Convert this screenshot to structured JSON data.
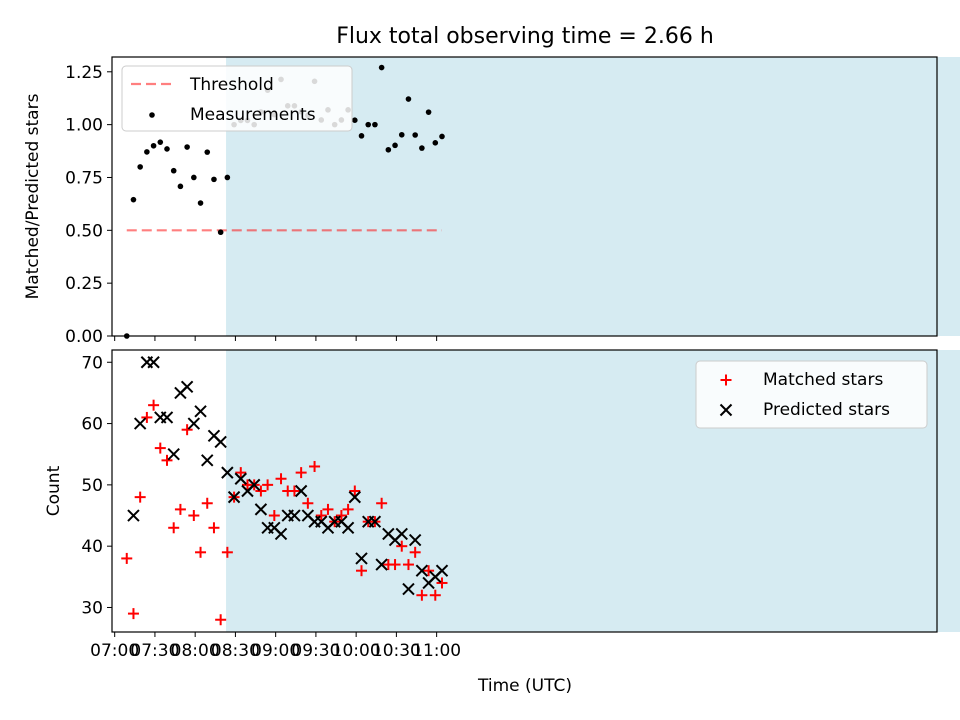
{
  "colors": {
    "span": "#add8e6",
    "threshold": "#ff0000",
    "matched": "#ff0000",
    "predicted": "#000000",
    "measure": "#000000"
  },
  "chart_data": {
    "title": "Flux total observing time = 2.66 h",
    "xlabel": "Time (UTC)",
    "x_ticks": [
      "07:00",
      "07:30",
      "08:00",
      "08:30",
      "09:00",
      "09:30",
      "10:00",
      "10:30",
      "11:00"
    ],
    "x_range_minutes": [
      418,
      1033
    ],
    "span_minutes": [
      503,
      1063
    ],
    "times": [
      "07:09",
      "07:14",
      "07:19",
      "07:24",
      "07:29",
      "07:34",
      "07:39",
      "07:44",
      "07:49",
      "07:54",
      "07:59",
      "08:04",
      "08:09",
      "08:14",
      "08:19",
      "08:24",
      "08:29",
      "08:34",
      "08:39",
      "08:44",
      "08:49",
      "08:54",
      "08:59",
      "09:04",
      "09:09",
      "09:14",
      "09:19",
      "09:24",
      "09:29",
      "09:34",
      "09:39",
      "09:44",
      "09:49",
      "09:54",
      "09:59",
      "10:04",
      "10:09",
      "10:14",
      "10:19",
      "10:24",
      "10:29",
      "10:34",
      "10:39",
      "10:44",
      "10:49",
      "10:54",
      "10:59",
      "11:04"
    ],
    "top": {
      "type": "scatter",
      "ylabel": "Matched/Predicted stars",
      "ylim": [
        0,
        1.32
      ],
      "y_ticks": [
        "0.00",
        "0.25",
        "0.50",
        "0.75",
        "1.00",
        "1.25"
      ],
      "threshold": 0.5,
      "threshold_x_range": [
        "07:09",
        "11:04"
      ],
      "legend": [
        "Threshold",
        "Measurements"
      ],
      "legend_position": "upper-left",
      "ratios": [
        0.0,
        0.645,
        0.8,
        0.871,
        0.9,
        0.917,
        0.885,
        0.782,
        0.708,
        0.894,
        0.75,
        0.629,
        0.87,
        0.741,
        0.491,
        0.75,
        1.0,
        1.02,
        1.02,
        1.0,
        1.06,
        1.163,
        1.047,
        1.214,
        1.089,
        1.089,
        1.061,
        1.044,
        1.205,
        1.022,
        1.07,
        1.0,
        1.022,
        1.07,
        1.021,
        0.947,
        1.0,
        1.0,
        1.27,
        0.881,
        0.902,
        0.952,
        1.121,
        0.951,
        0.889,
        1.059,
        0.914,
        0.944
      ]
    },
    "bottom": {
      "type": "scatter",
      "ylabel": "Count",
      "ylim": [
        26,
        72
      ],
      "y_ticks": [
        "30",
        "40",
        "50",
        "60",
        "70"
      ],
      "legend": [
        "Matched stars",
        "Predicted stars"
      ],
      "legend_position": "upper-right",
      "series": [
        {
          "name": "Matched stars",
          "marker": "plus",
          "values": [
            38,
            29,
            48,
            61,
            63,
            56,
            54,
            43,
            46,
            59,
            45,
            39,
            47,
            43,
            28,
            39,
            48,
            52,
            50,
            50,
            49,
            50,
            45,
            51,
            49,
            49,
            52,
            47,
            53,
            45,
            46,
            44,
            45,
            46,
            49,
            36,
            44,
            44,
            47,
            37,
            37,
            40,
            37,
            39,
            32,
            36,
            32,
            34
          ]
        },
        {
          "name": "Predicted stars",
          "marker": "x",
          "values": [
            null,
            45,
            60,
            70,
            70,
            61,
            61,
            55,
            65,
            66,
            60,
            62,
            54,
            58,
            57,
            52,
            48,
            51,
            49,
            50,
            46,
            43,
            43,
            42,
            45,
            45,
            49,
            45,
            44,
            44,
            43,
            44,
            44,
            43,
            48,
            38,
            44,
            44,
            37,
            42,
            41,
            42,
            33,
            41,
            36,
            34,
            35,
            36
          ]
        }
      ]
    }
  }
}
